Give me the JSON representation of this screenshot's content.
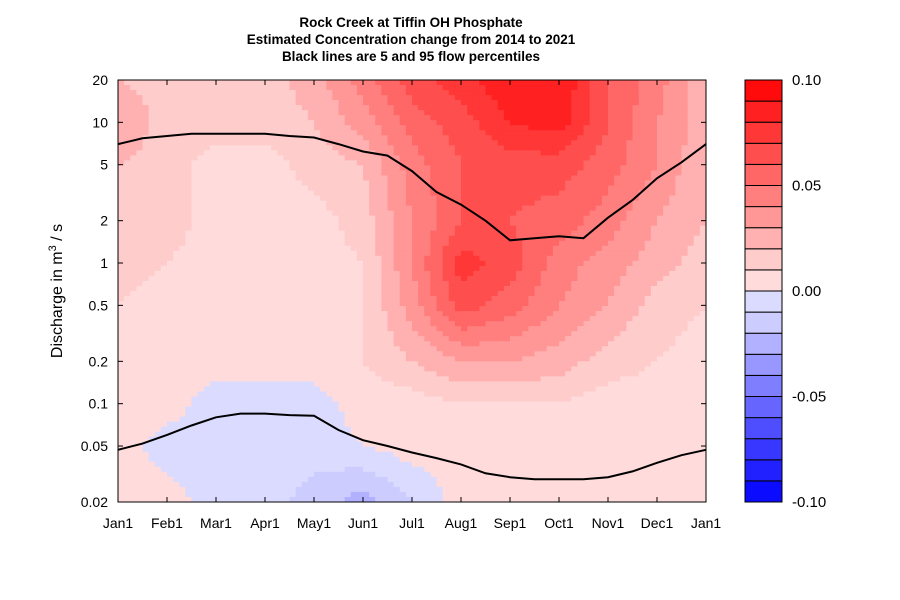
{
  "chart_data": {
    "type": "heatmap",
    "title": "Rock Creek at Tiffin OH  Phosphate",
    "subtitle": "Estimated Concentration change from 2014 to 2021",
    "note": "Black lines are 5 and 95 flow percentiles",
    "ylabel": {
      "prefix": "Discharge in m",
      "superscript": "3",
      "suffix": " / s"
    },
    "x_ticks": [
      "Jan1",
      "Feb1",
      "Mar1",
      "Apr1",
      "May1",
      "Jun1",
      "Jul1",
      "Aug1",
      "Sep1",
      "Oct1",
      "Nov1",
      "Dec1",
      "Jan1"
    ],
    "y_scale": "log",
    "y_ticks": [
      "20",
      "10",
      "5",
      "2",
      "1",
      "0.5",
      "0.2",
      "0.1",
      "0.05",
      "0.02"
    ],
    "y_tick_values": [
      20,
      10,
      5,
      2,
      1,
      0.5,
      0.2,
      0.1,
      0.05,
      0.02
    ],
    "ylim": [
      0.02,
      20
    ],
    "colorbar": {
      "min": -0.1,
      "max": 0.1,
      "step": 0.01,
      "tick_labels": [
        "0.10",
        "0.05",
        "0.00",
        "-0.05",
        "-0.10"
      ],
      "tick_values": [
        0.1,
        0.05,
        0.0,
        -0.05,
        -0.1
      ]
    },
    "colors": {
      "positive": "#ff0000",
      "negative": "#0000ff",
      "neutral": "#ffffff",
      "percentile_line": "#000000"
    },
    "grid": {
      "months": [
        0,
        1,
        2,
        3,
        4,
        5,
        6,
        7,
        8,
        9,
        10,
        11,
        12
      ],
      "discharge": [
        20,
        10,
        5,
        2,
        1,
        0.5,
        0.2,
        0.1,
        0.05,
        0.02
      ]
    },
    "z": [
      [
        0.02,
        0.015,
        0.015,
        0.015,
        0.025,
        0.045,
        0.065,
        0.075,
        0.09,
        0.09,
        0.06,
        0.045,
        0.02
      ],
      [
        0.03,
        0.015,
        0.015,
        0.015,
        0.02,
        0.035,
        0.055,
        0.065,
        0.08,
        0.085,
        0.06,
        0.04,
        0.025
      ],
      [
        0.02,
        0.015,
        0.005,
        0.005,
        0.015,
        0.02,
        0.045,
        0.06,
        0.065,
        0.065,
        0.055,
        0.04,
        0.02
      ],
      [
        0.02,
        0.015,
        0.005,
        0.005,
        0.005,
        0.015,
        0.04,
        0.06,
        0.06,
        0.055,
        0.045,
        0.03,
        0.02
      ],
      [
        0.015,
        0.01,
        0.005,
        0.005,
        0.005,
        0.01,
        0.04,
        0.075,
        0.065,
        0.045,
        0.035,
        0.025,
        0.015
      ],
      [
        0.01,
        0.005,
        0.005,
        0.005,
        0.005,
        0.01,
        0.035,
        0.065,
        0.055,
        0.04,
        0.03,
        0.015,
        0.01
      ],
      [
        0.005,
        0.005,
        0.005,
        0.005,
        0.005,
        0.01,
        0.02,
        0.03,
        0.03,
        0.025,
        0.015,
        0.01,
        0.005
      ],
      [
        0.005,
        0.005,
        -0.005,
        -0.005,
        -0.005,
        0.005,
        0.005,
        0.01,
        0.01,
        0.01,
        0.005,
        0.005,
        0.005
      ],
      [
        0.005,
        -0.005,
        -0.005,
        -0.005,
        -0.005,
        0.0,
        0.005,
        0.005,
        0.005,
        0.005,
        0.005,
        0.005,
        0.005
      ],
      [
        0.005,
        0.005,
        -0.005,
        -0.005,
        -0.015,
        -0.025,
        -0.01,
        0.005,
        0.005,
        0.005,
        0.005,
        0.005,
        0.005
      ]
    ],
    "percentile_95": [
      [
        0,
        7.0
      ],
      [
        0.5,
        7.7
      ],
      [
        1,
        8.0
      ],
      [
        1.5,
        8.3
      ],
      [
        2,
        8.3
      ],
      [
        2.5,
        8.3
      ],
      [
        3,
        8.3
      ],
      [
        3.5,
        8.0
      ],
      [
        4,
        7.8
      ],
      [
        4.5,
        7.0
      ],
      [
        5,
        6.2
      ],
      [
        5.5,
        5.8
      ],
      [
        6,
        4.5
      ],
      [
        6.5,
        3.2
      ],
      [
        7,
        2.6
      ],
      [
        7.5,
        2.0
      ],
      [
        8,
        1.45
      ],
      [
        8.5,
        1.5
      ],
      [
        9,
        1.55
      ],
      [
        9.5,
        1.5
      ],
      [
        10,
        2.1
      ],
      [
        10.5,
        2.8
      ],
      [
        11,
        4.0
      ],
      [
        11.5,
        5.2
      ],
      [
        12,
        7.0
      ]
    ],
    "percentile_5": [
      [
        0,
        0.047
      ],
      [
        0.5,
        0.052
      ],
      [
        1,
        0.06
      ],
      [
        1.5,
        0.07
      ],
      [
        2,
        0.08
      ],
      [
        2.5,
        0.085
      ],
      [
        3,
        0.085
      ],
      [
        3.5,
        0.083
      ],
      [
        4,
        0.082
      ],
      [
        4.5,
        0.065
      ],
      [
        5,
        0.055
      ],
      [
        5.5,
        0.05
      ],
      [
        6,
        0.045
      ],
      [
        6.5,
        0.041
      ],
      [
        7,
        0.037
      ],
      [
        7.5,
        0.032
      ],
      [
        8,
        0.03
      ],
      [
        8.5,
        0.029
      ],
      [
        9,
        0.029
      ],
      [
        9.5,
        0.029
      ],
      [
        10,
        0.03
      ],
      [
        10.5,
        0.033
      ],
      [
        11,
        0.038
      ],
      [
        11.5,
        0.043
      ],
      [
        12,
        0.047
      ]
    ]
  }
}
